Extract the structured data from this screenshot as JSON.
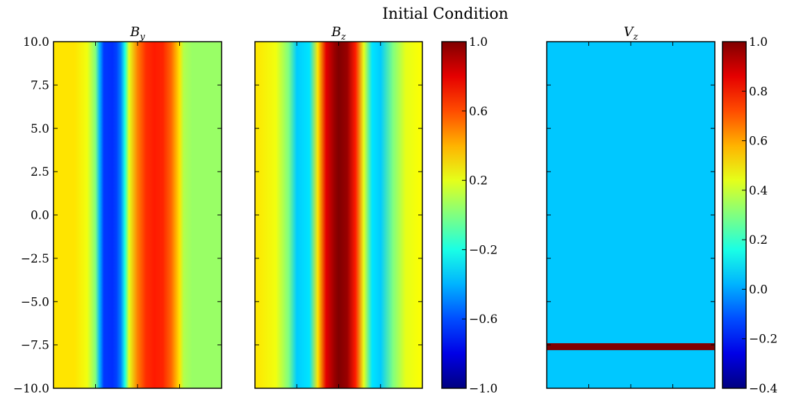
{
  "figure": {
    "suptitle": "Initial Condition"
  },
  "chart_data": [
    {
      "type": "heatmap",
      "title_symbol": "B",
      "title_subscript": "y",
      "xlim": [
        -2,
        2
      ],
      "ylim": [
        -10,
        10
      ],
      "yticks": [
        "10.0",
        "7.5",
        "5.0",
        "2.5",
        "0.0",
        "−2.5",
        "−5.0",
        "−7.5",
        "−10.0"
      ],
      "ytick_values": [
        10,
        7.5,
        5,
        2.5,
        0,
        -2.5,
        -5,
        -7.5,
        -10
      ],
      "xtick_values": [
        -1,
        0,
        1
      ],
      "colormap": "jet",
      "vlim": [
        -1,
        1
      ],
      "x_profile": {
        "x": [
          -2.0,
          -1.5,
          -1.2,
          -1.0,
          -0.9,
          -0.8,
          -0.6,
          -0.5,
          -0.4,
          -0.3,
          -0.2,
          0.0,
          0.2,
          0.4,
          0.6,
          0.8,
          1.0,
          1.1,
          1.3,
          1.6,
          2.0
        ],
        "value": [
          0.3,
          0.3,
          0.22,
          0.0,
          -0.4,
          -0.64,
          -0.66,
          -0.62,
          -0.5,
          -0.2,
          0.2,
          0.5,
          0.66,
          0.7,
          0.68,
          0.55,
          0.3,
          0.1,
          0.05,
          0.05,
          0.05
        ]
      }
    },
    {
      "type": "heatmap",
      "title_symbol": "B",
      "title_subscript": "z",
      "xlim": [
        -2,
        2
      ],
      "ylim": [
        -10,
        10
      ],
      "ytick_values": [
        10,
        7.5,
        5,
        2.5,
        0,
        -2.5,
        -5,
        -7.5,
        -10
      ],
      "xtick_values": [
        -1,
        0,
        1
      ],
      "colormap": "jet",
      "vlim": [
        -1,
        1
      ],
      "x_profile": {
        "x": [
          -2.0,
          -1.5,
          -1.2,
          -1.0,
          -0.7,
          -0.5,
          -0.3,
          -0.1,
          0.0,
          0.2,
          0.4,
          0.6,
          0.8,
          1.0,
          1.3,
          1.6,
          2.0
        ],
        "value": [
          0.3,
          0.22,
          0.0,
          -0.35,
          -0.3,
          0.3,
          0.8,
          0.95,
          1.0,
          0.95,
          0.7,
          0.2,
          -0.3,
          -0.35,
          0.0,
          0.2,
          0.25
        ]
      },
      "colorbar": {
        "ticks": [
          "1.0",
          "0.6",
          "0.2",
          "−0.2",
          "−0.6",
          "−1.0"
        ],
        "tick_values": [
          1.0,
          0.6,
          0.2,
          -0.2,
          -0.6,
          -1.0
        ],
        "vlim": [
          -1,
          1
        ]
      }
    },
    {
      "type": "heatmap",
      "title_symbol": "V",
      "title_subscript": "z",
      "xlim": [
        -2,
        2
      ],
      "ylim": [
        -10,
        10
      ],
      "ytick_values": [
        10,
        7.5,
        5,
        2.5,
        0,
        -2.5,
        -5,
        -7.5,
        -10
      ],
      "xtick_values": [
        -1,
        0,
        1
      ],
      "colormap": "jet",
      "vlim": [
        -0.4,
        1.0
      ],
      "background_value": 0.05,
      "band": {
        "y_min": -7.8,
        "y_max": -7.4,
        "value": 1.0
      },
      "colorbar": {
        "ticks": [
          "1.0",
          "0.8",
          "0.6",
          "0.4",
          "0.2",
          "0.0",
          "−0.2",
          "−0.4"
        ],
        "tick_values": [
          1.0,
          0.8,
          0.6,
          0.4,
          0.2,
          0.0,
          -0.2,
          -0.4
        ],
        "vlim": [
          -0.4,
          1.0
        ]
      }
    }
  ]
}
